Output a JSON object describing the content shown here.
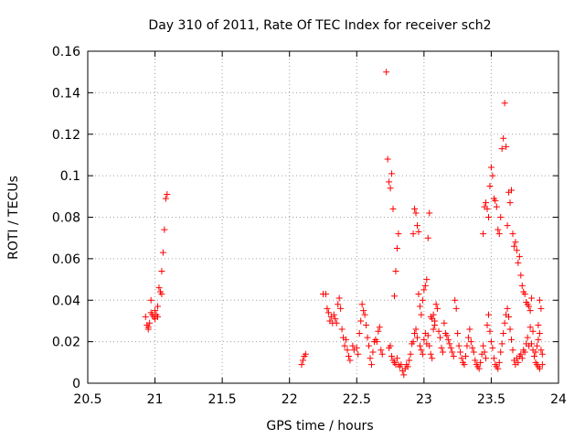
{
  "chart_data": {
    "type": "scatter",
    "title": "Day 310 of 2011, Rate Of TEC Index for receiver sch2",
    "xlabel": "GPS time / hours",
    "ylabel": "ROTI / TECUs",
    "xlim": [
      20.5,
      24
    ],
    "ylim": [
      0,
      0.16
    ],
    "xticks": [
      20.5,
      21,
      21.5,
      22,
      22.5,
      23,
      23.5,
      24
    ],
    "xtick_labels": [
      "20.5",
      "21",
      "21.5",
      "22",
      "22.5",
      "23",
      "23.5",
      "24"
    ],
    "yticks": [
      0,
      0.02,
      0.04,
      0.06,
      0.08,
      0.1,
      0.12,
      0.14,
      0.16
    ],
    "ytick_labels": [
      "0",
      "0.02",
      "0.04",
      "0.06",
      "0.08",
      "0.1",
      "0.12",
      "0.14",
      "0.16"
    ],
    "grid": true,
    "marker": "+",
    "series": [
      {
        "name": "ROTI",
        "color": "#ff0000",
        "points": [
          [
            20.93,
            0.032
          ],
          [
            20.94,
            0.028
          ],
          [
            20.95,
            0.027
          ],
          [
            20.95,
            0.026
          ],
          [
            20.96,
            0.029
          ],
          [
            20.97,
            0.034
          ],
          [
            20.97,
            0.04
          ],
          [
            20.98,
            0.033
          ],
          [
            20.99,
            0.032
          ],
          [
            21.0,
            0.031
          ],
          [
            21.0,
            0.035
          ],
          [
            21.01,
            0.033
          ],
          [
            21.02,
            0.032
          ],
          [
            21.02,
            0.037
          ],
          [
            21.03,
            0.046
          ],
          [
            21.04,
            0.044
          ],
          [
            21.05,
            0.043
          ],
          [
            21.05,
            0.054
          ],
          [
            21.06,
            0.063
          ],
          [
            21.07,
            0.074
          ],
          [
            21.08,
            0.089
          ],
          [
            21.09,
            0.091
          ],
          [
            22.09,
            0.009
          ],
          [
            22.1,
            0.011
          ],
          [
            22.11,
            0.013
          ],
          [
            22.12,
            0.014
          ],
          [
            22.25,
            0.043
          ],
          [
            22.27,
            0.043
          ],
          [
            22.28,
            0.036
          ],
          [
            22.29,
            0.034
          ],
          [
            22.3,
            0.03
          ],
          [
            22.31,
            0.032
          ],
          [
            22.32,
            0.029
          ],
          [
            22.33,
            0.033
          ],
          [
            22.34,
            0.031
          ],
          [
            22.35,
            0.029
          ],
          [
            22.36,
            0.038
          ],
          [
            22.37,
            0.041
          ],
          [
            22.38,
            0.036
          ],
          [
            22.39,
            0.026
          ],
          [
            22.4,
            0.022
          ],
          [
            22.41,
            0.018
          ],
          [
            22.42,
            0.021
          ],
          [
            22.43,
            0.016
          ],
          [
            22.44,
            0.013
          ],
          [
            22.45,
            0.011
          ],
          [
            22.47,
            0.018
          ],
          [
            22.48,
            0.016
          ],
          [
            22.5,
            0.017
          ],
          [
            22.51,
            0.014
          ],
          [
            22.52,
            0.024
          ],
          [
            22.53,
            0.03
          ],
          [
            22.54,
            0.038
          ],
          [
            22.55,
            0.035
          ],
          [
            22.56,
            0.033
          ],
          [
            22.57,
            0.028
          ],
          [
            22.58,
            0.022
          ],
          [
            22.59,
            0.018
          ],
          [
            22.6,
            0.012
          ],
          [
            22.61,
            0.009
          ],
          [
            22.62,
            0.015
          ],
          [
            22.63,
            0.02
          ],
          [
            22.64,
            0.021
          ],
          [
            22.65,
            0.02
          ],
          [
            22.66,
            0.025
          ],
          [
            22.67,
            0.027
          ],
          [
            22.68,
            0.016
          ],
          [
            22.69,
            0.014
          ],
          [
            22.72,
            0.15
          ],
          [
            22.73,
            0.108
          ],
          [
            22.74,
            0.097
          ],
          [
            22.75,
            0.094
          ],
          [
            22.76,
            0.101
          ],
          [
            22.77,
            0.084
          ],
          [
            22.78,
            0.042
          ],
          [
            22.79,
            0.054
          ],
          [
            22.8,
            0.065
          ],
          [
            22.81,
            0.072
          ],
          [
            22.74,
            0.017
          ],
          [
            22.75,
            0.018
          ],
          [
            22.76,
            0.013
          ],
          [
            22.77,
            0.011
          ],
          [
            22.78,
            0.01
          ],
          [
            22.79,
            0.009
          ],
          [
            22.8,
            0.012
          ],
          [
            22.81,
            0.009
          ],
          [
            22.82,
            0.008
          ],
          [
            22.83,
            0.009
          ],
          [
            22.84,
            0.006
          ],
          [
            22.85,
            0.004
          ],
          [
            22.86,
            0.007
          ],
          [
            22.87,
            0.009
          ],
          [
            22.88,
            0.008
          ],
          [
            22.89,
            0.011
          ],
          [
            22.9,
            0.014
          ],
          [
            22.91,
            0.019
          ],
          [
            22.92,
            0.072
          ],
          [
            22.93,
            0.084
          ],
          [
            22.94,
            0.082
          ],
          [
            22.95,
            0.076
          ],
          [
            22.96,
            0.073
          ],
          [
            22.92,
            0.02
          ],
          [
            22.93,
            0.024
          ],
          [
            22.94,
            0.026
          ],
          [
            22.95,
            0.022
          ],
          [
            22.96,
            0.043
          ],
          [
            22.97,
            0.037
          ],
          [
            22.98,
            0.033
          ],
          [
            22.99,
            0.04
          ],
          [
            23.0,
            0.045
          ],
          [
            23.01,
            0.047
          ],
          [
            23.02,
            0.05
          ],
          [
            23.03,
            0.07
          ],
          [
            23.04,
            0.082
          ],
          [
            23.05,
            0.032
          ],
          [
            23.06,
            0.031
          ],
          [
            23.07,
            0.033
          ],
          [
            23.08,
            0.03
          ],
          [
            22.97,
            0.018
          ],
          [
            22.98,
            0.016
          ],
          [
            22.99,
            0.014
          ],
          [
            23.0,
            0.021
          ],
          [
            23.01,
            0.024
          ],
          [
            23.02,
            0.019
          ],
          [
            23.03,
            0.023
          ],
          [
            23.04,
            0.018
          ],
          [
            23.05,
            0.014
          ],
          [
            23.06,
            0.012
          ],
          [
            23.07,
            0.026
          ],
          [
            23.08,
            0.028
          ],
          [
            23.09,
            0.038
          ],
          [
            23.1,
            0.036
          ],
          [
            23.11,
            0.025
          ],
          [
            23.12,
            0.022
          ],
          [
            23.13,
            0.017
          ],
          [
            23.14,
            0.015
          ],
          [
            23.15,
            0.029
          ],
          [
            23.16,
            0.024
          ],
          [
            23.17,
            0.023
          ],
          [
            23.18,
            0.021
          ],
          [
            23.19,
            0.019
          ],
          [
            23.2,
            0.017
          ],
          [
            23.21,
            0.015
          ],
          [
            23.22,
            0.013
          ],
          [
            23.23,
            0.04
          ],
          [
            23.24,
            0.036
          ],
          [
            23.25,
            0.024
          ],
          [
            23.26,
            0.018
          ],
          [
            23.27,
            0.015
          ],
          [
            23.28,
            0.012
          ],
          [
            23.29,
            0.01
          ],
          [
            23.3,
            0.009
          ],
          [
            23.31,
            0.013
          ],
          [
            23.32,
            0.018
          ],
          [
            23.33,
            0.022
          ],
          [
            23.34,
            0.026
          ],
          [
            23.35,
            0.02
          ],
          [
            23.36,
            0.017
          ],
          [
            23.37,
            0.015
          ],
          [
            23.38,
            0.011
          ],
          [
            23.39,
            0.009
          ],
          [
            23.4,
            0.008
          ],
          [
            23.41,
            0.007
          ],
          [
            23.42,
            0.01
          ],
          [
            23.43,
            0.014
          ],
          [
            23.44,
            0.018
          ],
          [
            23.45,
            0.015
          ],
          [
            23.46,
            0.012
          ],
          [
            23.44,
            0.072
          ],
          [
            23.45,
            0.085
          ],
          [
            23.46,
            0.087
          ],
          [
            23.47,
            0.084
          ],
          [
            23.48,
            0.08
          ],
          [
            23.49,
            0.095
          ],
          [
            23.5,
            0.104
          ],
          [
            23.51,
            0.1
          ],
          [
            23.52,
            0.089
          ],
          [
            23.53,
            0.088
          ],
          [
            23.54,
            0.085
          ],
          [
            23.55,
            0.074
          ],
          [
            23.56,
            0.072
          ],
          [
            23.57,
            0.08
          ],
          [
            23.58,
            0.113
          ],
          [
            23.59,
            0.118
          ],
          [
            23.6,
            0.135
          ],
          [
            23.61,
            0.114
          ],
          [
            23.62,
            0.076
          ],
          [
            23.63,
            0.092
          ],
          [
            23.64,
            0.087
          ],
          [
            23.65,
            0.093
          ],
          [
            23.66,
            0.072
          ],
          [
            23.67,
            0.066
          ],
          [
            23.68,
            0.068
          ],
          [
            23.69,
            0.064
          ],
          [
            23.7,
            0.058
          ],
          [
            23.71,
            0.061
          ],
          [
            23.72,
            0.052
          ],
          [
            23.73,
            0.047
          ],
          [
            23.74,
            0.044
          ],
          [
            23.75,
            0.043
          ],
          [
            23.76,
            0.039
          ],
          [
            23.77,
            0.038
          ],
          [
            23.78,
            0.037
          ],
          [
            23.79,
            0.035
          ],
          [
            23.8,
            0.041
          ],
          [
            23.81,
            0.025
          ],
          [
            23.47,
            0.028
          ],
          [
            23.48,
            0.033
          ],
          [
            23.49,
            0.025
          ],
          [
            23.5,
            0.02
          ],
          [
            23.51,
            0.017
          ],
          [
            23.52,
            0.012
          ],
          [
            23.53,
            0.009
          ],
          [
            23.54,
            0.008
          ],
          [
            23.55,
            0.007
          ],
          [
            23.56,
            0.01
          ],
          [
            23.57,
            0.015
          ],
          [
            23.58,
            0.019
          ],
          [
            23.59,
            0.024
          ],
          [
            23.6,
            0.029
          ],
          [
            23.61,
            0.033
          ],
          [
            23.62,
            0.036
          ],
          [
            23.63,
            0.032
          ],
          [
            23.64,
            0.026
          ],
          [
            23.65,
            0.021
          ],
          [
            23.66,
            0.016
          ],
          [
            23.67,
            0.011
          ],
          [
            23.68,
            0.009
          ],
          [
            23.69,
            0.012
          ],
          [
            23.7,
            0.01
          ],
          [
            23.71,
            0.013
          ],
          [
            23.72,
            0.014
          ],
          [
            23.73,
            0.012
          ],
          [
            23.74,
            0.016
          ],
          [
            23.75,
            0.015
          ],
          [
            23.76,
            0.019
          ],
          [
            23.77,
            0.022
          ],
          [
            23.78,
            0.018
          ],
          [
            23.79,
            0.027
          ],
          [
            23.8,
            0.019
          ],
          [
            23.81,
            0.016
          ],
          [
            23.82,
            0.013
          ],
          [
            23.83,
            0.01
          ],
          [
            23.84,
            0.009
          ],
          [
            23.85,
            0.008
          ],
          [
            23.86,
            0.007
          ],
          [
            23.83,
            0.015
          ],
          [
            23.84,
            0.018
          ],
          [
            23.85,
            0.021
          ],
          [
            23.86,
            0.024
          ],
          [
            23.87,
            0.016
          ],
          [
            23.85,
            0.028
          ],
          [
            23.86,
            0.04
          ],
          [
            23.87,
            0.036
          ],
          [
            23.88,
            0.014
          ],
          [
            23.88,
            0.009
          ]
        ]
      }
    ]
  }
}
